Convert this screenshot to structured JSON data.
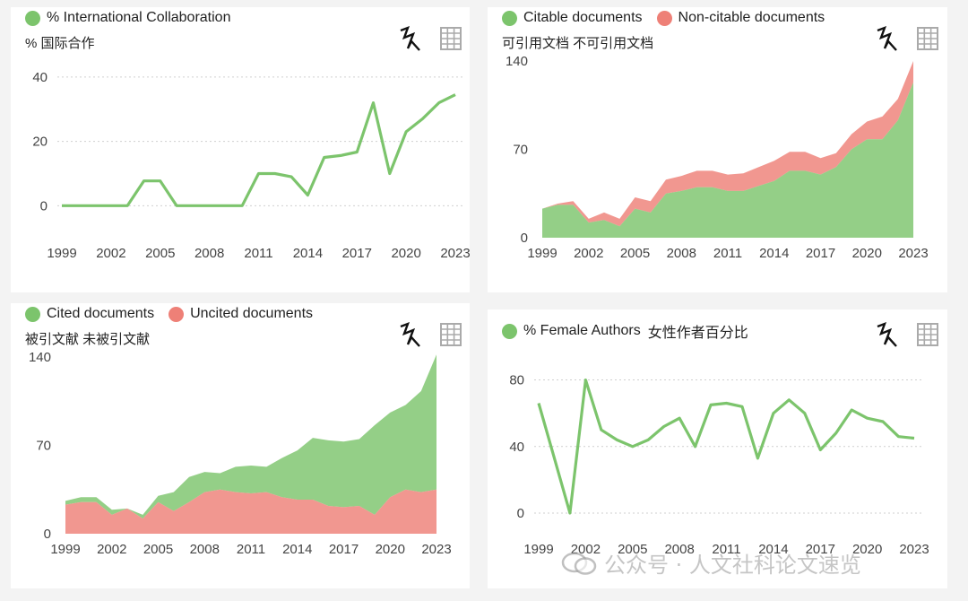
{
  "panels": [
    {
      "legend": [
        {
          "label": "% International Collaboration",
          "color": "#7cc46c"
        }
      ],
      "subtitle": "% 国际合作"
    },
    {
      "legend": [
        {
          "label": "Citable documents",
          "color": "#7cc46c"
        },
        {
          "label": "Non-citable documents",
          "color": "#ee8077"
        }
      ],
      "subtitle": "可引用文档 不可引用文档"
    },
    {
      "legend": [
        {
          "label": "Cited documents",
          "color": "#7cc46c"
        },
        {
          "label": "Uncited documents",
          "color": "#ee8077"
        }
      ],
      "subtitle": "被引文献 未被引文献"
    },
    {
      "legend": [
        {
          "label": "% Female Authors",
          "color": "#7cc46c"
        }
      ],
      "legend_suffix": "女性作者百分比",
      "subtitle": ""
    }
  ],
  "icons": [
    "chart-toggle-icon",
    "table-grid-icon",
    "wechat-logo-icon"
  ],
  "watermark": "公众号 · 人文社科论文速览",
  "chart_data": [
    {
      "type": "line",
      "x": [
        1999,
        2000,
        2001,
        2002,
        2003,
        2004,
        2005,
        2006,
        2007,
        2008,
        2009,
        2010,
        2011,
        2012,
        2013,
        2014,
        2015,
        2016,
        2017,
        2018,
        2019,
        2020,
        2021,
        2022,
        2023
      ],
      "series": [
        {
          "name": "% International Collaboration",
          "values": [
            0,
            0,
            0,
            0,
            0,
            7.7,
            7.7,
            0,
            0,
            0,
            0,
            0,
            10,
            10,
            9,
            3.3,
            15,
            15.6,
            16.7,
            32,
            10,
            23,
            27,
            32,
            34.5
          ],
          "color": "#7cc46c"
        }
      ],
      "xticks": [
        "1999",
        "2002",
        "2005",
        "2008",
        "2011",
        "2014",
        "2017",
        "2020",
        "2023"
      ],
      "yticks": [
        0,
        20,
        40
      ],
      "ylim": [
        -8,
        45
      ],
      "grid": true
    },
    {
      "type": "area",
      "x": [
        1999,
        2000,
        2001,
        2002,
        2003,
        2004,
        2005,
        2006,
        2007,
        2008,
        2009,
        2010,
        2011,
        2012,
        2013,
        2014,
        2015,
        2016,
        2017,
        2018,
        2019,
        2020,
        2021,
        2022,
        2023
      ],
      "series": [
        {
          "name": "Citable documents",
          "values": [
            23,
            26,
            26,
            12,
            14,
            9,
            23,
            20,
            35,
            37,
            40,
            40,
            37,
            37,
            41,
            45,
            53,
            53,
            50,
            56,
            70,
            78,
            78,
            93,
            123
          ],
          "color": "#7cc46c"
        },
        {
          "name": "Non-citable documents",
          "values": [
            0,
            1,
            3,
            3,
            6,
            6,
            9,
            9,
            11,
            12,
            13,
            13,
            13,
            14,
            15,
            16,
            15,
            15,
            13,
            11,
            12,
            14,
            18,
            17,
            17
          ],
          "color": "#ee8077"
        }
      ],
      "xticks": [
        "1999",
        "2002",
        "2005",
        "2008",
        "2011",
        "2014",
        "2017",
        "2020",
        "2023"
      ],
      "yticks": [
        0,
        70,
        140
      ],
      "ylim": [
        0,
        140
      ],
      "stacked": true
    },
    {
      "type": "area",
      "x": [
        1999,
        2000,
        2001,
        2002,
        2003,
        2004,
        2005,
        2006,
        2007,
        2008,
        2009,
        2010,
        2011,
        2012,
        2013,
        2014,
        2015,
        2016,
        2017,
        2018,
        2019,
        2020,
        2021,
        2022,
        2023
      ],
      "series": [
        {
          "name": "Uncited documents",
          "values": [
            23,
            25,
            25,
            15,
            20,
            12,
            25,
            18,
            25,
            33,
            35,
            33,
            32,
            33,
            29,
            27,
            27,
            22,
            21,
            22,
            15,
            29,
            35,
            33,
            35
          ],
          "color": "#ee8077"
        },
        {
          "name": "Cited documents",
          "values": [
            3,
            4,
            4,
            4,
            0,
            3,
            5,
            15,
            20,
            16,
            13,
            20,
            22,
            20,
            31,
            39,
            49,
            52,
            52,
            53,
            71,
            67,
            67,
            80,
            107
          ],
          "color": "#7cc46c"
        }
      ],
      "xticks": [
        "1999",
        "2002",
        "2005",
        "2008",
        "2011",
        "2014",
        "2017",
        "2020",
        "2023"
      ],
      "yticks": [
        0,
        70,
        140
      ],
      "ylim": [
        0,
        140
      ],
      "stacked": true
    },
    {
      "type": "line",
      "x": [
        1999,
        2000,
        2001,
        2002,
        2003,
        2004,
        2005,
        2006,
        2007,
        2008,
        2009,
        2010,
        2011,
        2012,
        2013,
        2014,
        2015,
        2016,
        2017,
        2018,
        2019,
        2020,
        2021,
        2022,
        2023
      ],
      "series": [
        {
          "name": "% Female Authors",
          "values": [
            66,
            33,
            0,
            80,
            50,
            44,
            40,
            44,
            52,
            57,
            40,
            65,
            66,
            64,
            33,
            60,
            68,
            60,
            38,
            48,
            62,
            57,
            55,
            46,
            45
          ],
          "color": "#7cc46c"
        }
      ],
      "xticks": [
        "1999",
        "2002",
        "2005",
        "2008",
        "2011",
        "2014",
        "2017",
        "2020",
        "2023"
      ],
      "yticks": [
        0,
        40,
        80
      ],
      "ylim": [
        -14,
        90
      ],
      "grid": true
    }
  ]
}
